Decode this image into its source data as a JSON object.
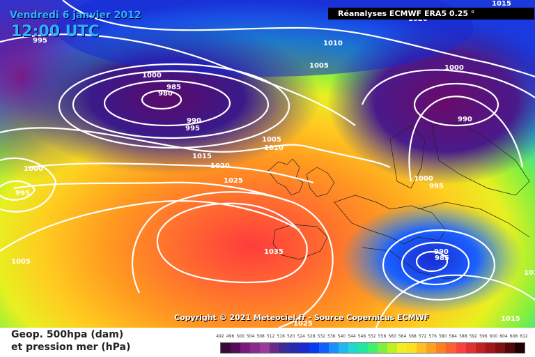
{
  "header": {
    "date": "Vendredi 6 janvier 2012",
    "time": "12:00 UTC"
  },
  "model": "Réanalyses ECMWF ERA5 0.25 °",
  "copyright": "Copyright © 2021 Meteociel.fr - Source Copernicus ECMWF",
  "footer": {
    "line1": "Geop. 500hpa (dam)",
    "line2": "et pression mer (hPa)"
  },
  "legend": {
    "ticks": [
      "492",
      "496",
      "500",
      "504",
      "508",
      "512",
      "516",
      "520",
      "524",
      "528",
      "532",
      "536",
      "540",
      "544",
      "548",
      "552",
      "556",
      "560",
      "564",
      "568",
      "572",
      "576",
      "580",
      "584",
      "588",
      "592",
      "596",
      "600",
      "604",
      "608",
      "612"
    ],
    "colors": [
      "#3a0a3a",
      "#5a0a5a",
      "#7a1a7a",
      "#8a2a8a",
      "#9a3a9a",
      "#6a2a8a",
      "#3a2a9a",
      "#2a2ab0",
      "#1a2ad0",
      "#0a3af0",
      "#1060ff",
      "#1a90ff",
      "#20b8f0",
      "#20d8d0",
      "#20e8a0",
      "#40f070",
      "#80f040",
      "#c0f020",
      "#f0f020",
      "#ffe020",
      "#ffc020",
      "#ffa020",
      "#ff8020",
      "#ff6030",
      "#ff4040",
      "#e03030",
      "#c02020",
      "#a01818",
      "#801010",
      "#500808",
      "#200000"
    ]
  },
  "pressure_labels": [
    {
      "text": "995"
    },
    {
      "text": "1000"
    },
    {
      "text": "985"
    },
    {
      "text": "980"
    },
    {
      "text": "990"
    },
    {
      "text": "995"
    },
    {
      "text": "1010"
    },
    {
      "text": "1005"
    },
    {
      "text": "1000"
    },
    {
      "text": "990"
    },
    {
      "text": "1005"
    },
    {
      "text": "1010"
    },
    {
      "text": "1015"
    },
    {
      "text": "1020"
    },
    {
      "text": "1025"
    },
    {
      "text": "1000"
    },
    {
      "text": "995"
    },
    {
      "text": "1000"
    },
    {
      "text": "995"
    },
    {
      "text": "1005"
    },
    {
      "text": "1035"
    },
    {
      "text": "990"
    },
    {
      "text": "985"
    },
    {
      "text": "1025"
    },
    {
      "text": "1015"
    },
    {
      "text": "1020"
    },
    {
      "text": "101"
    },
    {
      "text": "1015"
    }
  ]
}
